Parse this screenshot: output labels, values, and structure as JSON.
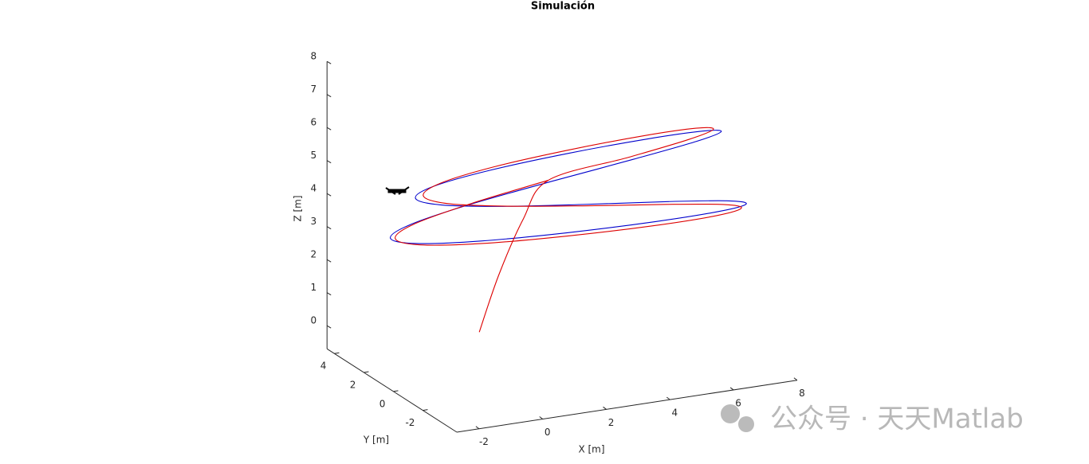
{
  "chart_data": {
    "type": "line3d",
    "title": "Simulación",
    "xlabel": "X [m]",
    "ylabel": "Y [m]",
    "zlabel": "Z [m]",
    "xlim": [
      -2.7,
      8
    ],
    "ylim": [
      -4.3,
      4.5
    ],
    "zlim": [
      -0.7,
      8
    ],
    "xticks": [
      -2,
      0,
      2,
      4,
      6,
      8
    ],
    "yticks": [
      -2,
      0,
      2,
      4
    ],
    "zticks": [
      0,
      1,
      2,
      3,
      4,
      5,
      6,
      7,
      8
    ],
    "grid": false,
    "series": [
      {
        "color": "#0000cc",
        "x": [
          2.8,
          5.4,
          7.3,
          8.0,
          7.3,
          5.4,
          2.8,
          0.2,
          -1.7,
          -2.4,
          -1.7,
          0.2,
          2.8,
          5.4,
          7.3,
          8.0,
          7.3,
          5.4,
          2.8,
          0.2,
          -1.7,
          -2.4,
          -1.7,
          0.2,
          2.8
        ],
        "y": [
          1.2,
          1.16,
          1.04,
          0.85,
          0.6,
          0.31,
          0,
          -0.31,
          -0.6,
          -0.85,
          -1.04,
          -1.16,
          -1.2,
          -1.16,
          -1.04,
          -0.85,
          -0.6,
          -0.31,
          0,
          0.31,
          0.6,
          0.85,
          1.04,
          1.16,
          1.2
        ],
        "z": [
          4.5,
          4.81,
          5.1,
          5.35,
          5.54,
          5.66,
          5.7,
          5.66,
          5.54,
          5.35,
          5.1,
          4.81,
          4.5,
          4.19,
          3.9,
          3.65,
          3.46,
          3.34,
          3.3,
          3.34,
          3.46,
          3.65,
          3.9,
          4.19,
          4.5
        ]
      },
      {
        "color": "#dd0000",
        "x": [
          0,
          0.8,
          1.8,
          2.8,
          5.3,
          7.13,
          7.8,
          7.13,
          5.3,
          2.8,
          0.3,
          -1.53,
          -2.2,
          -1.53,
          0.3,
          2.8,
          5.3,
          7.13,
          7.8,
          7.13,
          5.3,
          2.8,
          0.3,
          -1.53,
          -2.2,
          -1.53,
          0.3,
          2.8
        ],
        "y": [
          0,
          0.4,
          0.9,
          1.35,
          1.3,
          1.17,
          0.95,
          0.68,
          0.35,
          0,
          -0.35,
          -0.68,
          -0.95,
          -1.17,
          -1.3,
          -1.35,
          -1.3,
          -1.17,
          -0.95,
          -0.68,
          -0.35,
          0,
          0.35,
          0.68,
          0.95,
          1.17,
          1.3,
          1.35
        ],
        "z": [
          0.7,
          2.2,
          3.6,
          4.5,
          4.84,
          5.15,
          5.42,
          5.63,
          5.76,
          5.8,
          5.76,
          5.63,
          5.42,
          5.15,
          4.84,
          4.5,
          4.16,
          3.85,
          3.58,
          3.37,
          3.24,
          3.2,
          3.24,
          3.37,
          3.58,
          3.85,
          4.16,
          4.5
        ]
      }
    ],
    "watermark": "公众号 · 天天Matlab"
  }
}
